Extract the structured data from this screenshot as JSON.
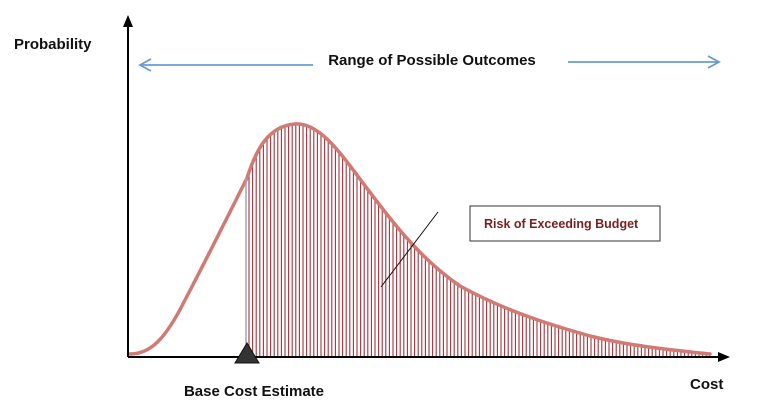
{
  "labels": {
    "y_axis": "Probability",
    "x_axis": "Cost",
    "range": "Range of Possible Outcomes",
    "base_cost": "Base Cost Estimate",
    "risk": "Risk of Exceeding Budget"
  },
  "colors": {
    "axis": "#000000",
    "range_arrow": "#6a9bd0",
    "curve": "#cf7a74",
    "hatch": "#a8323a",
    "risk_text": "#7a1f1f",
    "marker": "#333333"
  }
}
